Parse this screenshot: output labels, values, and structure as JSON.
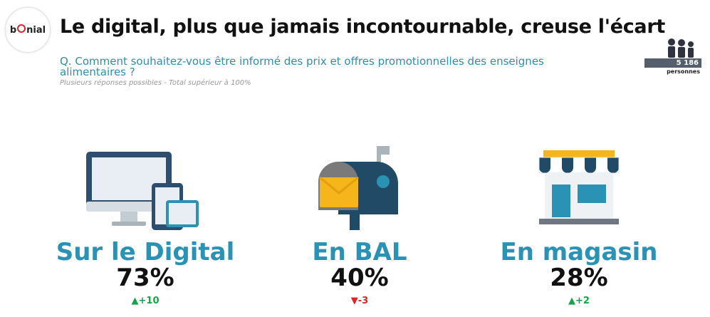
{
  "brand": {
    "logo_text": "bonial"
  },
  "title": "Le digital, plus que jamais incontournable, creuse l'écart",
  "question": "Q. Comment souhaitez-vous être informé des prix et offres promotionnelles des enseignes alimentaires ?",
  "note": "Plusieurs réponses possibles - Total supérieur à 100%",
  "respondents": {
    "count": "5 186",
    "unit": "personnes"
  },
  "chart_data": {
    "type": "table",
    "unit": "%",
    "categories": [
      "Sur le Digital",
      "En BAL",
      "En magasin"
    ],
    "values": [
      73,
      40,
      28
    ],
    "value_labels": [
      "73%",
      "40%",
      "28%"
    ],
    "changes": [
      10,
      -3,
      2
    ],
    "change_labels": [
      "+10",
      "-3",
      "+2"
    ],
    "icons": [
      "computer-devices-icon",
      "mailbox-icon",
      "storefront-icon"
    ]
  },
  "colors": {
    "label": "#2a93b5",
    "up": "#17a34a",
    "down": "#e02424"
  }
}
